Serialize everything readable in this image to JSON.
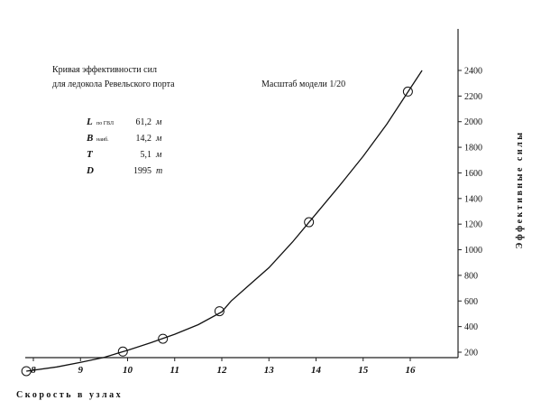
{
  "chart_data": {
    "type": "line",
    "title_lines": [
      "Кривая эффективности сил",
      "для ледокола Ревельского порта"
    ],
    "scale_note": "Масштаб модели 1/20",
    "xlabel": "Скорость в узлах",
    "ylabel": "Эффективные силы",
    "xlim": [
      7.8,
      16.6
    ],
    "ylim": [
      0,
      2600
    ],
    "x_ticks": [
      "8",
      "9",
      "10",
      "11",
      "12",
      "13",
      "14",
      "15",
      "16"
    ],
    "y_ticks": [
      "200",
      "400",
      "600",
      "800",
      "1000",
      "1200",
      "1400",
      "1600",
      "1800",
      "2000",
      "2200",
      "2400"
    ],
    "series": [
      {
        "markers": [
          {
            "x": 7.85,
            "y": 52
          },
          {
            "x": 9.9,
            "y": 205
          },
          {
            "x": 10.75,
            "y": 305
          },
          {
            "x": 11.95,
            "y": 520
          },
          {
            "x": 13.85,
            "y": 1215
          },
          {
            "x": 15.95,
            "y": 2235
          }
        ],
        "curve": [
          {
            "x": 7.85,
            "y": 52
          },
          {
            "x": 8.5,
            "y": 85
          },
          {
            "x": 9.0,
            "y": 120
          },
          {
            "x": 9.5,
            "y": 160
          },
          {
            "x": 10.0,
            "y": 215
          },
          {
            "x": 10.5,
            "y": 275
          },
          {
            "x": 11.0,
            "y": 340
          },
          {
            "x": 11.5,
            "y": 415
          },
          {
            "x": 12.0,
            "y": 515
          },
          {
            "x": 12.2,
            "y": 600
          },
          {
            "x": 12.6,
            "y": 730
          },
          {
            "x": 13.0,
            "y": 860
          },
          {
            "x": 13.5,
            "y": 1060
          },
          {
            "x": 14.0,
            "y": 1280
          },
          {
            "x": 14.5,
            "y": 1500
          },
          {
            "x": 15.0,
            "y": 1730
          },
          {
            "x": 15.5,
            "y": 1980
          },
          {
            "x": 16.0,
            "y": 2260
          },
          {
            "x": 16.25,
            "y": 2400
          }
        ]
      }
    ],
    "parameters": [
      {
        "symbol": "L",
        "subscript": "по ГВЛ",
        "value": "61,2",
        "unit": "м"
      },
      {
        "symbol": "B",
        "subscript": "наиб.",
        "value": "14,2",
        "unit": "м"
      },
      {
        "symbol": "T",
        "subscript": "",
        "value": "5,1",
        "unit": "м"
      },
      {
        "symbol": "D",
        "subscript": "",
        "value": "1995",
        "unit": "т"
      }
    ],
    "grid": false
  }
}
